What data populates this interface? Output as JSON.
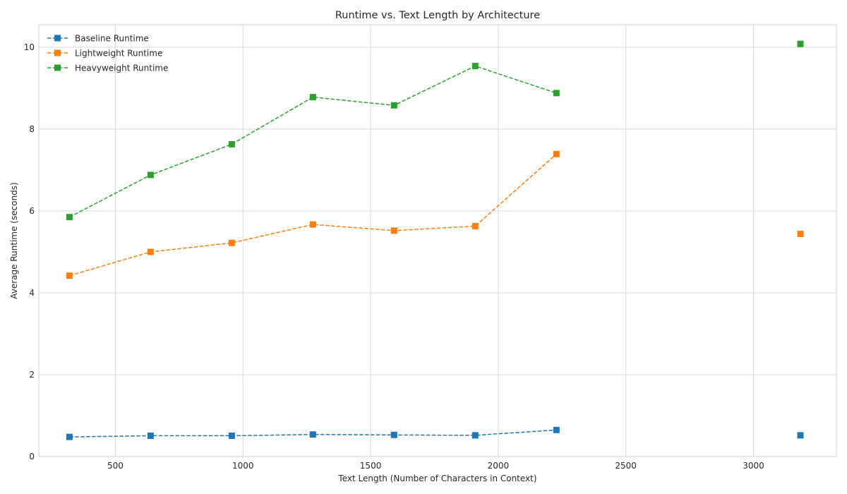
{
  "chart_data": {
    "type": "line",
    "title": "Runtime vs. Text Length by Architecture",
    "xlabel": "Text Length (Number of Characters in Context)",
    "ylabel": "Average Runtime (seconds)",
    "xlim": [
      200,
      3325
    ],
    "ylim": [
      0,
      10.55
    ],
    "xticks": [
      500,
      1000,
      1500,
      2000,
      2500,
      3000
    ],
    "yticks": [
      0,
      2,
      4,
      6,
      8,
      10
    ],
    "grid": true,
    "legend_position": "top-left",
    "x": [
      320,
      638,
      956,
      1274,
      1592,
      1910,
      2228,
      3184
    ],
    "connected_points": 7,
    "series": [
      {
        "name": "Baseline Runtime",
        "color": "#1f77b4",
        "marker": "square",
        "linestyle": "dashed",
        "values": [
          0.48,
          0.51,
          0.51,
          0.54,
          0.53,
          0.52,
          0.65,
          0.52
        ]
      },
      {
        "name": "Lightweight Runtime",
        "color": "#ff7f0e",
        "marker": "square",
        "linestyle": "dashed",
        "values": [
          4.42,
          5.0,
          5.22,
          5.67,
          5.52,
          5.63,
          7.39,
          5.44
        ]
      },
      {
        "name": "Heavyweight Runtime",
        "color": "#2ca02c",
        "marker": "square",
        "linestyle": "dashed",
        "values": [
          5.85,
          6.88,
          7.63,
          8.78,
          8.58,
          9.54,
          8.88,
          10.08
        ]
      }
    ]
  }
}
